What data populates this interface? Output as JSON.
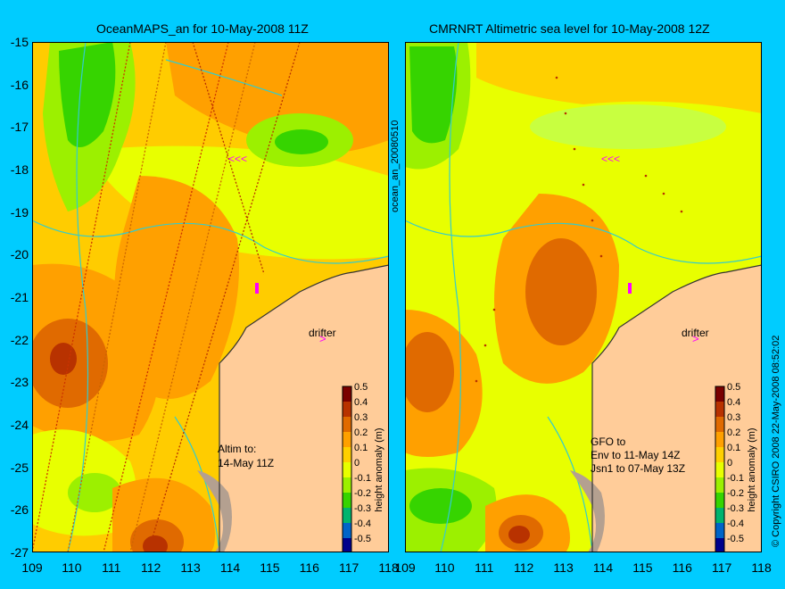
{
  "panels": [
    {
      "title": "OceanMAPS_an for 10-May-2008 11Z",
      "drifter_label": "drifter",
      "note_lines": [
        "Altim to:",
        "14-May 11Z"
      ]
    },
    {
      "title": "CMRNRT Altimetric sea level  for 10-May-2008 12Z",
      "drifter_label": "drifter",
      "note_lines": [
        "GFO to",
        "Env to 11-May 14Z",
        "Jsn1 to 07-May 13Z"
      ]
    }
  ],
  "side_label": "ocean_an_20080510",
  "copyright": "© Copyright CSIRO 2008   22-May-2008 08:52:02",
  "y_ticks": [
    "-15",
    "-16",
    "-17",
    "-18",
    "-19",
    "-20",
    "-21",
    "-22",
    "-23",
    "-24",
    "-25",
    "-26",
    "-27"
  ],
  "x_ticks": [
    "109",
    "110",
    "111",
    "112",
    "113",
    "114",
    "115",
    "116",
    "117",
    "118"
  ],
  "colorbar": {
    "label": "height anomaly (m)",
    "ticks": [
      "0.5",
      "0.4",
      "0.3",
      "0.2",
      "0.1",
      "0",
      "-0.1",
      "-0.2",
      "-0.3",
      "-0.4",
      "-0.5"
    ],
    "colors": [
      "#7a0000",
      "#b83200",
      "#e06a00",
      "#ffa000",
      "#ffd000",
      "#e8ff00",
      "#9cf000",
      "#36d400",
      "#00b46e",
      "#0064c8",
      "#00008c"
    ]
  },
  "colors": {
    "background": "#00ccff",
    "land": "#ffcc99",
    "coastal_shelf": "#b4a090",
    "contour": "#33cccc",
    "drifter": "#ff00ff"
  }
}
